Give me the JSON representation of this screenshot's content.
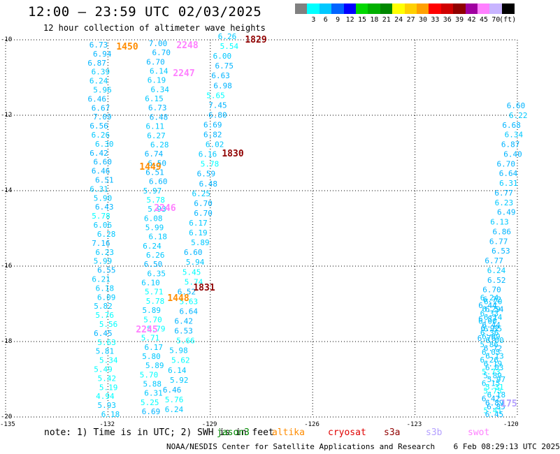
{
  "title": "12:00 – 23:59 UTC 02/03/2025",
  "subtitle": "12 hour collection of altimeter wave heights",
  "legend": {
    "unit_label": "(ft)",
    "swatches": [
      {
        "label": "",
        "color": "#808080"
      },
      {
        "label": "3",
        "color": "#00ffff"
      },
      {
        "label": "6",
        "color": "#00c8ff"
      },
      {
        "label": "9",
        "color": "#0064ff"
      },
      {
        "label": "12",
        "color": "#0000ff"
      },
      {
        "label": "15",
        "color": "#00d800"
      },
      {
        "label": "18",
        "color": "#00b000"
      },
      {
        "label": "21",
        "color": "#008800"
      },
      {
        "label": "24",
        "color": "#ffff00"
      },
      {
        "label": "27",
        "color": "#ffd000"
      },
      {
        "label": "30",
        "color": "#ffa000"
      },
      {
        "label": "33",
        "color": "#ff0000"
      },
      {
        "label": "36",
        "color": "#d00000"
      },
      {
        "label": "39",
        "color": "#900000"
      },
      {
        "label": "42",
        "color": "#a000a0"
      },
      {
        "label": "45",
        "color": "#ff80ff"
      },
      {
        "label": "70",
        "color": "#c8b4ff"
      },
      {
        "label": "",
        "color": "#000000"
      }
    ]
  },
  "axes": {
    "y_ticks": [
      "-10",
      "-12",
      "-14",
      "-16",
      "-18",
      "-20"
    ],
    "x_ticks": [
      "-135",
      "-132",
      "-129",
      "-126",
      "-123",
      "-120"
    ]
  },
  "note": "note: 1) Time is in UTC; 2) SWH is in feet",
  "satellites": [
    {
      "name": "jason3",
      "color": "#008800"
    },
    {
      "name": "altika",
      "color": "#ff8c00"
    },
    {
      "name": "cryosat",
      "color": "#e00000"
    },
    {
      "name": "s3a",
      "color": "#900000"
    },
    {
      "name": "s3b",
      "color": "#b4a0ff"
    },
    {
      "name": "swot",
      "color": "#ff80ff"
    }
  ],
  "footer": "NOAA/NESDIS Center for Satellite Applications and Research    6 Feb 08:29:13 UTC 2025",
  "chart_data": {
    "type": "scatter",
    "xlim": [
      -135,
      -120
    ],
    "ylim": [
      -20,
      -10
    ],
    "grid": true,
    "tracks": [
      {
        "name": "track-1",
        "values": [
          "6.73",
          "6.94",
          "6.87",
          "6.39",
          "6.24",
          "5.96",
          "6.46",
          "6.67",
          "7.09",
          "6.56",
          "6.26",
          "6.30",
          "6.42",
          "6.60",
          "6.46",
          "6.51",
          "6.31",
          "5.90",
          "6.43",
          "5.78",
          "6.06",
          "6.28",
          "7.16",
          "6.23",
          "5.99",
          "6.55",
          "6.21",
          "6.18",
          "6.09",
          "5.82",
          "5.76",
          "5.56",
          "6.45",
          "5.63",
          "5.81",
          "5.34",
          "5.49",
          "5.42",
          "5.19",
          "4.94",
          "5.93",
          "6.18"
        ]
      },
      {
        "name": "track-2",
        "values": [
          "7.00",
          "6.70",
          "6.70",
          "6.14",
          "6.19",
          "6.34",
          "6.15",
          "6.73",
          "6.48",
          "6.11",
          "6.27",
          "6.28",
          "6.74",
          "6.50",
          "6.51",
          "6.60",
          "5.97",
          "5.78",
          "5.93",
          "6.08",
          "5.99",
          "6.18",
          "6.24",
          "6.26",
          "6.50",
          "6.35",
          "6.10",
          "5.71",
          "5.78",
          "5.89",
          "5.70",
          "5.79",
          "5.71",
          "6.17",
          "5.80",
          "5.89",
          "5.70",
          "5.88",
          "6.31",
          "5.25",
          "6.69"
        ]
      },
      {
        "name": "track-3",
        "values": [
          "6.26",
          "5.54",
          "6.00",
          "6.75",
          "6.63",
          "6.98",
          "5.65",
          "7.45",
          "6.80",
          "6.69",
          "6.82",
          "6.02",
          "6.16",
          "5.78",
          "6.59",
          "6.48",
          "6.25",
          "6.70",
          "6.70",
          "6.17",
          "6.19",
          "5.89",
          "6.60",
          "5.94",
          "5.45",
          "5.74",
          "6.52",
          "5.63",
          "6.64",
          "6.42",
          "6.53",
          "5.66",
          "5.98",
          "5.62",
          "6.14",
          "5.92",
          "6.46",
          "5.76",
          "6.24"
        ]
      },
      {
        "name": "track-4",
        "values": [
          "6.60",
          "6.22",
          "6.68",
          "6.34",
          "6.87",
          "6.40",
          "6.70",
          "6.64",
          "6.31",
          "6.77",
          "6.23",
          "6.49",
          "6.13",
          "6.86",
          "6.77",
          "6.53",
          "6.77",
          "6.24",
          "6.52",
          "6.70",
          "6.72",
          "6.54",
          "6.87",
          "6.92",
          "6.76"
        ]
      },
      {
        "name": "track-5",
        "values": [
          "6.24",
          "6.20",
          "6.44",
          "6.29",
          "6.33",
          "6.14",
          "6.00",
          "6.44",
          "6.35",
          "6.36",
          "6.09",
          "6.00",
          "5.86",
          "6.72",
          "6.05",
          "6.13",
          "6.26",
          "6.19",
          "6.03",
          "5.73",
          "5.89",
          "5.97",
          "6.15",
          "5.31",
          "5.75",
          "6.18",
          "6.42",
          "6.89",
          "6.85",
          "5.41",
          "6.45"
        ]
      }
    ],
    "labels": [
      {
        "text": "1829",
        "satellite": "s3a"
      },
      {
        "text": "1450",
        "satellite": "altika"
      },
      {
        "text": "2248",
        "satellite": "swot"
      },
      {
        "text": "2247",
        "satellite": "swot"
      },
      {
        "text": "1830",
        "satellite": "s3a"
      },
      {
        "text": "1449",
        "satellite": "altika"
      },
      {
        "text": "2246",
        "satellite": "swot"
      },
      {
        "text": "1831",
        "satellite": "s3a"
      },
      {
        "text": "1448",
        "satellite": "altika"
      },
      {
        "text": "2245",
        "satellite": "swot"
      },
      {
        "text": "175",
        "satellite": "s3b"
      }
    ]
  }
}
